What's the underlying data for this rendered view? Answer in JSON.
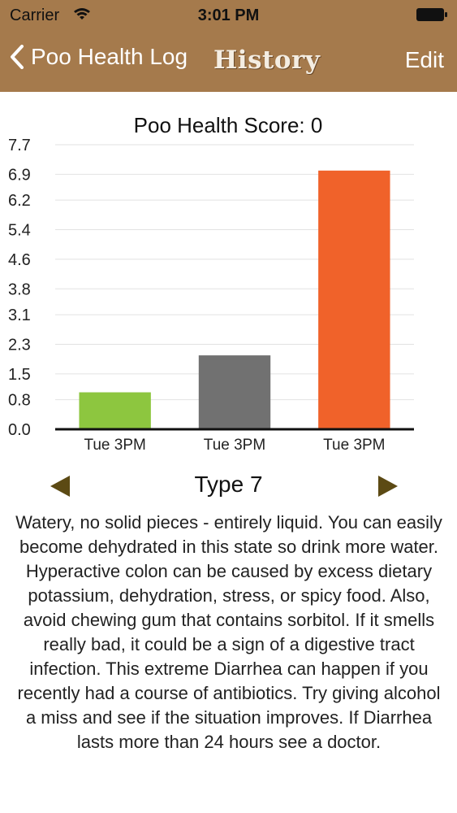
{
  "status_bar": {
    "carrier": "Carrier",
    "time": "3:01 PM"
  },
  "nav": {
    "back_label": "Poo Health Log",
    "title": "History",
    "edit_label": "Edit"
  },
  "chart_data": {
    "type": "bar",
    "title": "Poo Health Score: 0",
    "categories": [
      "Tue 3PM",
      "Tue 3PM",
      "Tue 3PM"
    ],
    "values": [
      1,
      2,
      7
    ],
    "colors": [
      "#8dc63f",
      "#717171",
      "#f0622a"
    ],
    "yticks": [
      "0.0",
      "0.8",
      "1.5",
      "2.3",
      "3.1",
      "3.8",
      "4.6",
      "5.4",
      "6.2",
      "6.9",
      "7.7"
    ],
    "ylim": [
      0,
      7.7
    ],
    "grid": true
  },
  "type_selector": {
    "label": "Type 7"
  },
  "description": "Watery, no solid pieces - entirely liquid. You can easily become dehydrated in this state so drink more water. Hyperactive colon can be caused by excess dietary potassium, dehydration, stress, or spicy food. Also, avoid chewing gum that contains sorbitol. If it smells really bad, it could be a sign of a digestive tract infection. This extreme Diarrhea can happen if you recently had a course of antibiotics. Try giving alcohol a miss and see if the situation improves. If Diarrhea lasts more than 24 hours see a doctor.",
  "colors": {
    "header": "#a57a4c",
    "arrow": "#5c4a14"
  }
}
